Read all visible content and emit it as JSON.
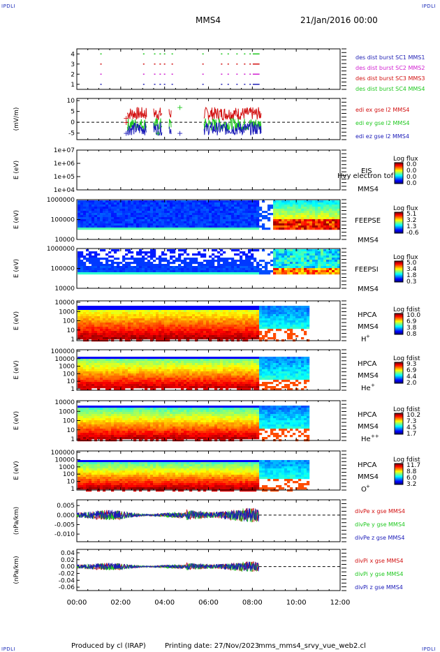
{
  "header": {
    "corner_tl": "IPDLI",
    "corner_tr": "IPDLI",
    "corner_bl": "IPDLI",
    "corner_br": "IPDLI",
    "spacecraft": "MMS4",
    "datetime": "21/Jan/2016 00:00"
  },
  "footer": {
    "produced_by": "Produced by cl (IRAP)",
    "printing_date": "Printing date: 27/Nov/2023",
    "filename": "mms_mms4_srvy_vue_web2.cl"
  },
  "colors": {
    "mms1": "#1f1fb4",
    "mms2": "#d11fd1",
    "mms3": "#d21010",
    "mms4": "#1fc81f",
    "x": "#d21010",
    "y": "#1fc81f",
    "z": "#1a1ab8"
  },
  "chart_data": [
    {
      "id": "burst",
      "type": "scatter",
      "yticks": [
        "1",
        "2",
        "3",
        "4"
      ],
      "ylim": [
        0.5,
        4.5
      ],
      "legend": [
        {
          "label": "des dist burst SC1 MMS1",
          "color": "#1f1fb4"
        },
        {
          "label": "des dist burst SC2 MMS2",
          "color": "#d11fd1"
        },
        {
          "label": "des dist burst SC3 MMS3",
          "color": "#d21010"
        },
        {
          "label": "des dist burst SC4 MMS4",
          "color": "#1fc81f"
        }
      ],
      "burst_times_h": [
        1.1,
        3.05,
        3.55,
        3.8,
        4.0,
        4.35,
        5.75,
        6.6,
        6.9,
        7.3,
        7.65,
        7.9,
        8.05,
        8.2
      ]
    },
    {
      "id": "edi",
      "type": "line",
      "ylabel": "(mV/m)",
      "yticks": [
        "-5",
        "0",
        "5",
        "10"
      ],
      "ylim": [
        -8,
        11
      ],
      "legend": [
        {
          "label": "edi ex gse l2 MMS4",
          "color": "#d21010"
        },
        {
          "label": "edi ey gse l2 MMS4",
          "color": "#1fc81f"
        },
        {
          "label": "edi ez gse l2 MMS4",
          "color": "#1a1ab8"
        }
      ],
      "segments_h": [
        [
          2.3,
          3.2
        ],
        [
          3.5,
          3.9
        ],
        [
          4.2,
          4.3
        ],
        [
          5.8,
          8.4
        ]
      ],
      "approx_ranges": {
        "ex": [
          -2,
          9
        ],
        "ey": [
          -5,
          4
        ],
        "ez": [
          -6,
          2
        ]
      }
    },
    {
      "id": "eis",
      "type": "heatmap",
      "ylabel": "E (eV)",
      "yticks": [
        "1e+04",
        "1e+05",
        "1e+06",
        "1e+07"
      ],
      "instrument": "EIS",
      "note": "Hvy electron tof",
      "spacecraft": "MMS4",
      "cbar_title": "Log flux",
      "cbar_ticks": [
        "0.0",
        "0.0",
        "0.0",
        "0.0"
      ]
    },
    {
      "id": "feepse",
      "type": "heatmap",
      "ylabel": "E (eV)",
      "yticks": [
        "10000",
        "100000",
        "1000000"
      ],
      "instrument": "FEEPSE",
      "spacecraft": "MMS4",
      "cbar_title": "Log flux",
      "cbar_ticks": [
        "5.1",
        "3.2",
        "1.3",
        "-0.6"
      ]
    },
    {
      "id": "feepsi",
      "type": "heatmap",
      "ylabel": "E (eV)",
      "yticks": [
        "10000",
        "100000",
        "1000000"
      ],
      "instrument": "FEEPSI",
      "spacecraft": "MMS4",
      "cbar_title": "Log flux",
      "cbar_ticks": [
        "5.0",
        "3.4",
        "1.8",
        "0.3"
      ]
    },
    {
      "id": "hpca_h",
      "type": "heatmap",
      "ylabel": "E (eV)",
      "yticks": [
        "1",
        "10",
        "100",
        "1000",
        "10000"
      ],
      "instrument": "HPCA",
      "spacecraft": "MMS4",
      "species": "H",
      "species_sup": "+",
      "cbar_title": "Log fdist",
      "cbar_ticks": [
        "10.0",
        "6.9",
        "3.8",
        "0.8"
      ]
    },
    {
      "id": "hpca_he",
      "type": "heatmap",
      "ylabel": "E (eV)",
      "yticks": [
        "1",
        "10",
        "100",
        "1000",
        "10000",
        "100000"
      ],
      "instrument": "HPCA",
      "spacecraft": "MMS4",
      "species": "He",
      "species_sup": "+",
      "cbar_title": "Log fdist",
      "cbar_ticks": [
        "9.3",
        "6.9",
        "4.4",
        "2.0"
      ]
    },
    {
      "id": "hpca_hepp",
      "type": "heatmap",
      "ylabel": "E (eV)",
      "yticks": [
        "1",
        "10",
        "100",
        "1000",
        "10000"
      ],
      "instrument": "HPCA",
      "spacecraft": "MMS4",
      "species": "He",
      "species_sup": "++",
      "cbar_title": "Log fdist",
      "cbar_ticks": [
        "10.2",
        "7.3",
        "4.5",
        "1.7"
      ]
    },
    {
      "id": "hpca_o",
      "type": "heatmap",
      "ylabel": "E (eV)",
      "yticks": [
        "1",
        "10",
        "100",
        "1000",
        "10000",
        "100000"
      ],
      "instrument": "HPCA",
      "spacecraft": "MMS4",
      "species": "O",
      "species_sup": "+",
      "cbar_title": "Log fdist",
      "cbar_ticks": [
        "11.7",
        "8.8",
        "6.0",
        "3.2"
      ]
    },
    {
      "id": "divpe",
      "type": "line",
      "ylabel": "(nPa/km)",
      "yticks": [
        "-0.010",
        "-0.005",
        "0.000",
        "0.005"
      ],
      "ylim": [
        -0.014,
        0.008
      ],
      "legend": [
        {
          "label": "divPe x gse MMS4",
          "color": "#d21010"
        },
        {
          "label": "divPe y gse MMS4",
          "color": "#1fc81f"
        },
        {
          "label": "divPe z gse MMS4",
          "color": "#1a1ab8"
        }
      ],
      "data_end_h": 8.3
    },
    {
      "id": "divpi",
      "type": "line",
      "ylabel": "(nPa/km)",
      "yticks": [
        "-0.06",
        "-0.04",
        "-0.02",
        "0.00",
        "0.02",
        "0.04"
      ],
      "ylim": [
        -0.07,
        0.05
      ],
      "legend": [
        {
          "label": "divPi x gse MMS4",
          "color": "#d21010"
        },
        {
          "label": "divPi y gse MMS4",
          "color": "#1fc81f"
        },
        {
          "label": "divPi z gse MMS4",
          "color": "#1a1ab8"
        }
      ],
      "data_end_h": 8.3
    }
  ],
  "xaxis": {
    "ticks": [
      "00:00",
      "02:00",
      "04:00",
      "06:00",
      "08:00",
      "10:00",
      "12:00"
    ],
    "xlim_h": [
      0,
      12
    ]
  }
}
